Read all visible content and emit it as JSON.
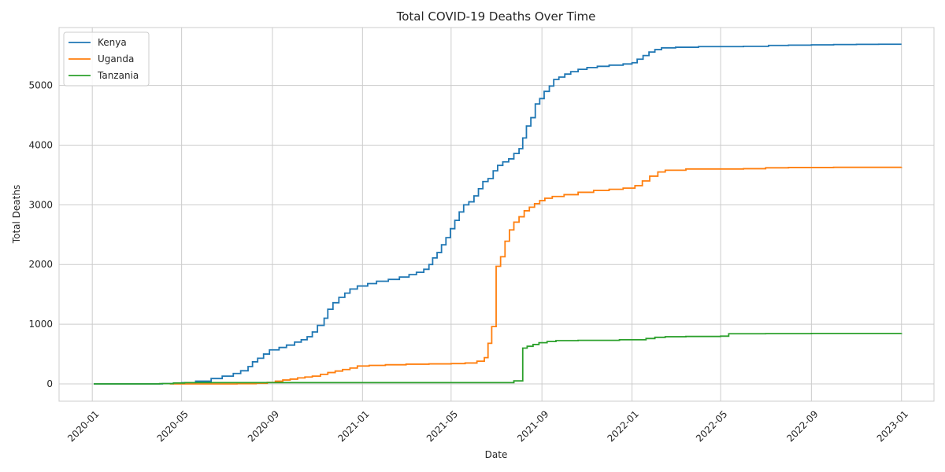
{
  "chart_data": {
    "type": "line",
    "title": "Total COVID-19 Deaths Over Time",
    "xlabel": "Date",
    "ylabel": "Total Deaths",
    "x_range": [
      "2019-11-17",
      "2023-02-14"
    ],
    "ylim": [
      -290,
      5970
    ],
    "y_ticks": [
      0,
      1000,
      2000,
      3000,
      4000,
      5000
    ],
    "x_ticks": [
      "2020-01",
      "2020-05",
      "2020-09",
      "2021-01",
      "2021-05",
      "2021-09",
      "2022-01",
      "2022-05",
      "2022-09",
      "2023-01"
    ],
    "x_tick_dates": [
      "2020-01-01",
      "2020-05-01",
      "2020-09-01",
      "2021-01-01",
      "2021-05-01",
      "2021-09-01",
      "2022-01-01",
      "2022-05-01",
      "2022-09-01",
      "2023-01-01"
    ],
    "grid": true,
    "legend_position": "top-left",
    "step": true,
    "series": [
      {
        "name": "Kenya",
        "color": "#1f77b4",
        "points": [
          [
            "2020-01-03",
            0
          ],
          [
            "2020-03-20",
            0
          ],
          [
            "2020-04-05",
            5
          ],
          [
            "2020-04-20",
            12
          ],
          [
            "2020-05-01",
            20
          ],
          [
            "2020-05-20",
            45
          ],
          [
            "2020-06-10",
            90
          ],
          [
            "2020-06-25",
            130
          ],
          [
            "2020-07-10",
            175
          ],
          [
            "2020-07-20",
            220
          ],
          [
            "2020-07-30",
            290
          ],
          [
            "2020-08-05",
            370
          ],
          [
            "2020-08-12",
            430
          ],
          [
            "2020-08-20",
            500
          ],
          [
            "2020-08-28",
            570
          ],
          [
            "2020-09-10",
            610
          ],
          [
            "2020-09-20",
            650
          ],
          [
            "2020-10-01",
            700
          ],
          [
            "2020-10-10",
            740
          ],
          [
            "2020-10-18",
            790
          ],
          [
            "2020-10-25",
            870
          ],
          [
            "2020-11-01",
            980
          ],
          [
            "2020-11-10",
            1100
          ],
          [
            "2020-11-15",
            1250
          ],
          [
            "2020-11-22",
            1360
          ],
          [
            "2020-11-30",
            1450
          ],
          [
            "2020-12-08",
            1520
          ],
          [
            "2020-12-15",
            1590
          ],
          [
            "2020-12-25",
            1640
          ],
          [
            "2021-01-08",
            1680
          ],
          [
            "2021-01-20",
            1720
          ],
          [
            "2021-02-05",
            1750
          ],
          [
            "2021-02-20",
            1790
          ],
          [
            "2021-03-05",
            1830
          ],
          [
            "2021-03-15",
            1870
          ],
          [
            "2021-03-25",
            1920
          ],
          [
            "2021-04-01",
            2000
          ],
          [
            "2021-04-06",
            2110
          ],
          [
            "2021-04-12",
            2200
          ],
          [
            "2021-04-18",
            2330
          ],
          [
            "2021-04-24",
            2450
          ],
          [
            "2021-04-30",
            2600
          ],
          [
            "2021-05-06",
            2740
          ],
          [
            "2021-05-12",
            2880
          ],
          [
            "2021-05-18",
            3000
          ],
          [
            "2021-05-25",
            3050
          ],
          [
            "2021-06-01",
            3150
          ],
          [
            "2021-06-07",
            3270
          ],
          [
            "2021-06-13",
            3390
          ],
          [
            "2021-06-20",
            3440
          ],
          [
            "2021-06-27",
            3570
          ],
          [
            "2021-07-03",
            3660
          ],
          [
            "2021-07-10",
            3720
          ],
          [
            "2021-07-18",
            3770
          ],
          [
            "2021-07-25",
            3860
          ],
          [
            "2021-08-01",
            3940
          ],
          [
            "2021-08-06",
            4120
          ],
          [
            "2021-08-11",
            4320
          ],
          [
            "2021-08-17",
            4460
          ],
          [
            "2021-08-23",
            4690
          ],
          [
            "2021-08-29",
            4780
          ],
          [
            "2021-09-04",
            4900
          ],
          [
            "2021-09-11",
            4990
          ],
          [
            "2021-09-17",
            5100
          ],
          [
            "2021-09-24",
            5140
          ],
          [
            "2021-10-02",
            5190
          ],
          [
            "2021-10-10",
            5230
          ],
          [
            "2021-10-20",
            5270
          ],
          [
            "2021-11-01",
            5300
          ],
          [
            "2021-11-15",
            5320
          ],
          [
            "2021-12-01",
            5340
          ],
          [
            "2021-12-20",
            5360
          ],
          [
            "2022-01-01",
            5380
          ],
          [
            "2022-01-08",
            5440
          ],
          [
            "2022-01-16",
            5500
          ],
          [
            "2022-01-24",
            5560
          ],
          [
            "2022-02-01",
            5600
          ],
          [
            "2022-02-10",
            5630
          ],
          [
            "2022-03-01",
            5640
          ],
          [
            "2022-04-01",
            5650
          ],
          [
            "2022-05-01",
            5650
          ],
          [
            "2022-06-01",
            5655
          ],
          [
            "2022-07-05",
            5670
          ],
          [
            "2022-08-01",
            5675
          ],
          [
            "2022-09-01",
            5680
          ],
          [
            "2022-10-01",
            5685
          ],
          [
            "2022-11-01",
            5688
          ],
          [
            "2022-12-01",
            5690
          ],
          [
            "2023-01-01",
            5690
          ]
        ]
      },
      {
        "name": "Uganda",
        "color": "#ff7f0e",
        "points": [
          [
            "2020-04-15",
            0
          ],
          [
            "2020-06-20",
            0
          ],
          [
            "2020-07-15",
            3
          ],
          [
            "2020-08-10",
            10
          ],
          [
            "2020-08-25",
            25
          ],
          [
            "2020-09-05",
            45
          ],
          [
            "2020-09-15",
            65
          ],
          [
            "2020-09-25",
            80
          ],
          [
            "2020-10-05",
            100
          ],
          [
            "2020-10-15",
            115
          ],
          [
            "2020-10-25",
            130
          ],
          [
            "2020-11-05",
            160
          ],
          [
            "2020-11-15",
            190
          ],
          [
            "2020-11-25",
            215
          ],
          [
            "2020-12-05",
            240
          ],
          [
            "2020-12-15",
            265
          ],
          [
            "2020-12-25",
            300
          ],
          [
            "2021-01-10",
            310
          ],
          [
            "2021-02-01",
            320
          ],
          [
            "2021-03-01",
            330
          ],
          [
            "2021-04-01",
            335
          ],
          [
            "2021-05-01",
            340
          ],
          [
            "2021-05-20",
            350
          ],
          [
            "2021-06-05",
            380
          ],
          [
            "2021-06-15",
            440
          ],
          [
            "2021-06-20",
            680
          ],
          [
            "2021-06-25",
            960
          ],
          [
            "2021-07-01",
            1970
          ],
          [
            "2021-07-07",
            2130
          ],
          [
            "2021-07-13",
            2390
          ],
          [
            "2021-07-19",
            2580
          ],
          [
            "2021-07-25",
            2710
          ],
          [
            "2021-08-01",
            2800
          ],
          [
            "2021-08-08",
            2900
          ],
          [
            "2021-08-15",
            2960
          ],
          [
            "2021-08-22",
            3020
          ],
          [
            "2021-08-29",
            3070
          ],
          [
            "2021-09-05",
            3110
          ],
          [
            "2021-09-15",
            3140
          ],
          [
            "2021-10-01",
            3170
          ],
          [
            "2021-10-20",
            3210
          ],
          [
            "2021-11-10",
            3240
          ],
          [
            "2021-12-01",
            3260
          ],
          [
            "2021-12-20",
            3280
          ],
          [
            "2022-01-05",
            3320
          ],
          [
            "2022-01-15",
            3400
          ],
          [
            "2022-01-25",
            3480
          ],
          [
            "2022-02-05",
            3550
          ],
          [
            "2022-02-15",
            3580
          ],
          [
            "2022-03-15",
            3600
          ],
          [
            "2022-05-01",
            3600
          ],
          [
            "2022-06-01",
            3605
          ],
          [
            "2022-07-01",
            3620
          ],
          [
            "2022-08-01",
            3625
          ],
          [
            "2022-10-01",
            3628
          ],
          [
            "2023-01-01",
            3630
          ]
        ]
      },
      {
        "name": "Tanzania",
        "color": "#2ca02c",
        "points": [
          [
            "2020-01-03",
            0
          ],
          [
            "2020-03-15",
            0
          ],
          [
            "2020-04-01",
            5
          ],
          [
            "2020-04-20",
            15
          ],
          [
            "2020-05-05",
            21
          ],
          [
            "2021-07-20",
            21
          ],
          [
            "2021-07-25",
            50
          ],
          [
            "2021-08-06",
            600
          ],
          [
            "2021-08-12",
            630
          ],
          [
            "2021-08-20",
            660
          ],
          [
            "2021-08-28",
            690
          ],
          [
            "2021-09-08",
            710
          ],
          [
            "2021-09-20",
            725
          ],
          [
            "2021-10-20",
            730
          ],
          [
            "2021-12-15",
            740
          ],
          [
            "2022-01-20",
            760
          ],
          [
            "2022-02-01",
            780
          ],
          [
            "2022-02-15",
            790
          ],
          [
            "2022-03-15",
            795
          ],
          [
            "2022-05-01",
            800
          ],
          [
            "2022-05-12",
            840
          ],
          [
            "2022-07-01",
            842
          ],
          [
            "2022-09-01",
            845
          ],
          [
            "2022-11-01",
            845
          ],
          [
            "2023-01-01",
            848
          ]
        ]
      }
    ]
  }
}
